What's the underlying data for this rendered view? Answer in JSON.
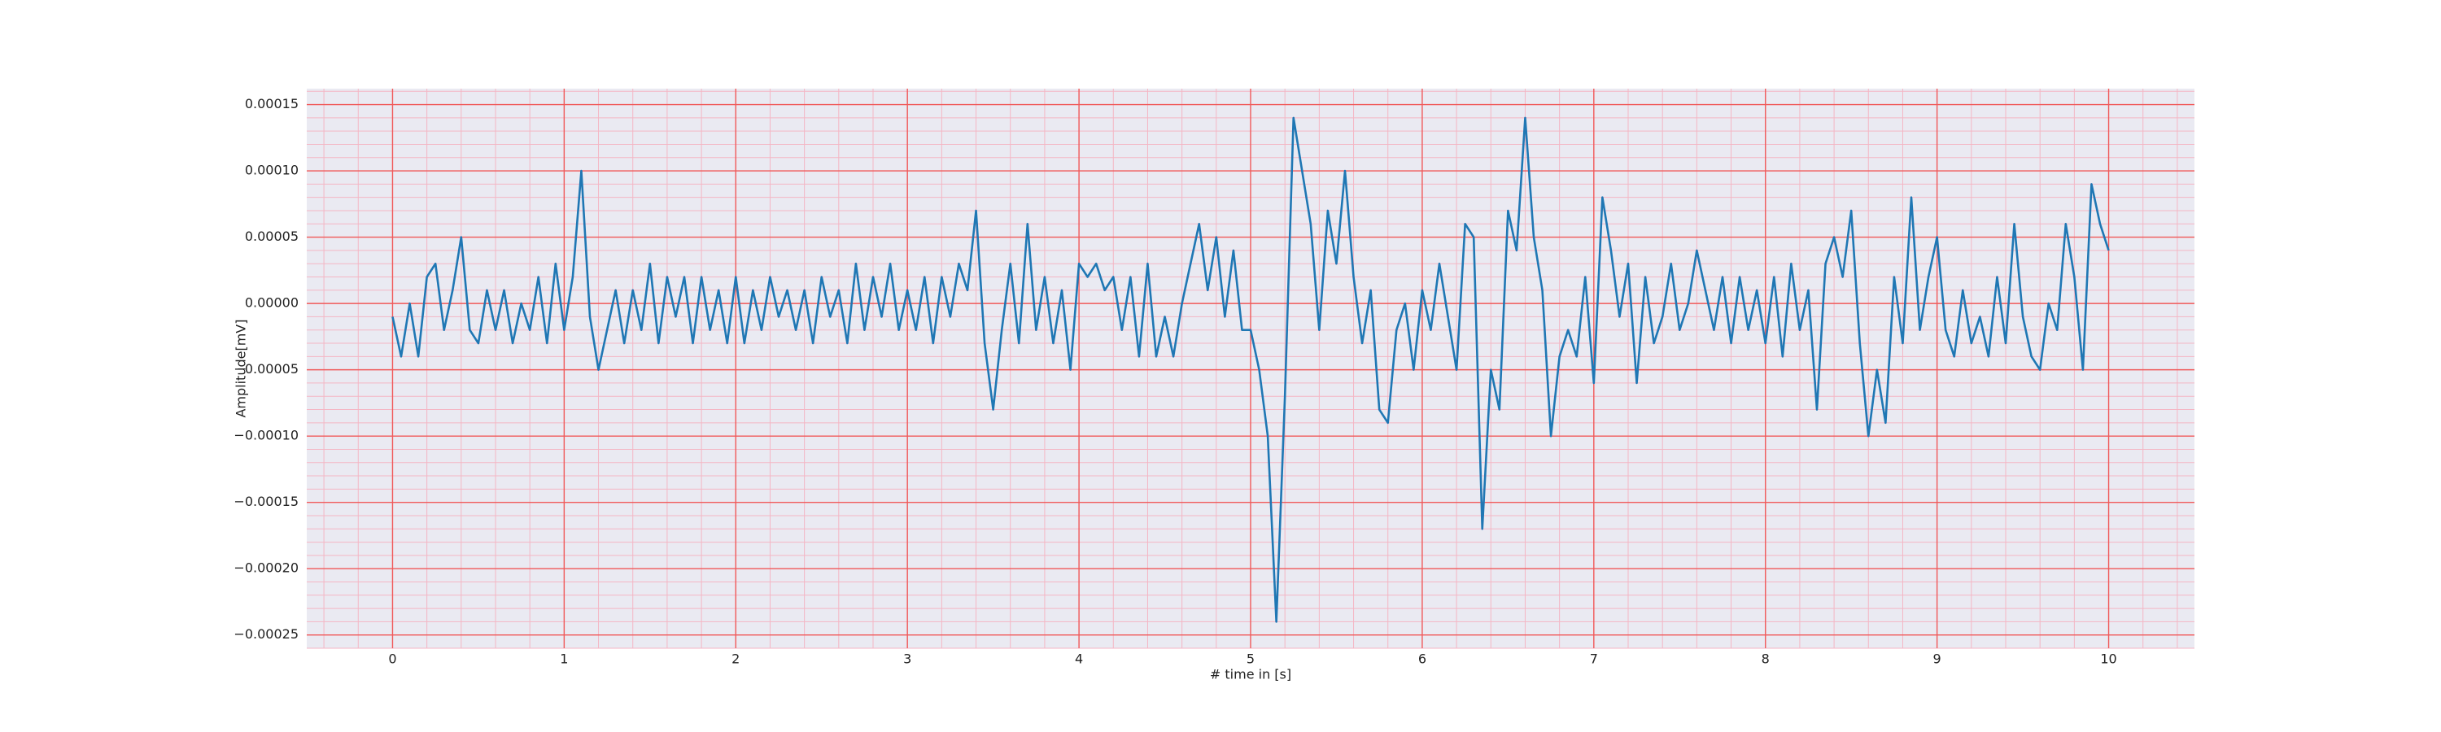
{
  "chart_data": {
    "type": "line",
    "xlabel": "# time in [s]",
    "ylabel": "Amplitude[mV]",
    "xlim": [
      -0.5,
      10.5
    ],
    "ylim": [
      -0.00026,
      0.000162
    ],
    "xticks": [
      0,
      1,
      2,
      3,
      4,
      5,
      6,
      7,
      8,
      9,
      10
    ],
    "yticks": [
      {
        "value": -0.00025,
        "label": "−0.00025"
      },
      {
        "value": -0.0002,
        "label": "−0.00020"
      },
      {
        "value": -0.00015,
        "label": "−0.00015"
      },
      {
        "value": -0.0001,
        "label": "−0.00010"
      },
      {
        "value": -5e-05,
        "label": "−0.00005"
      },
      {
        "value": 0,
        "label": "0.00000"
      },
      {
        "value": 5e-05,
        "label": "0.00005"
      },
      {
        "value": 0.0001,
        "label": "0.00010"
      },
      {
        "value": 0.00015,
        "label": "0.00015"
      }
    ],
    "grid": true,
    "minor_grid": true,
    "x": [
      0,
      0.05,
      0.1,
      0.15,
      0.2,
      0.25,
      0.3,
      0.35,
      0.4,
      0.45,
      0.5,
      0.55,
      0.6,
      0.65,
      0.7,
      0.75,
      0.8,
      0.85,
      0.9,
      0.95,
      1,
      1.05,
      1.1,
      1.15,
      1.2,
      1.25,
      1.3,
      1.35,
      1.4,
      1.45,
      1.5,
      1.55,
      1.6,
      1.65,
      1.7,
      1.75,
      1.8,
      1.85,
      1.9,
      1.95,
      2,
      2.05,
      2.1,
      2.15,
      2.2,
      2.25,
      2.3,
      2.35,
      2.4,
      2.45,
      2.5,
      2.55,
      2.6,
      2.65,
      2.7,
      2.75,
      2.8,
      2.85,
      2.9,
      2.95,
      3,
      3.05,
      3.1,
      3.15,
      3.2,
      3.25,
      3.3,
      3.35,
      3.4,
      3.45,
      3.5,
      3.55,
      3.6,
      3.65,
      3.7,
      3.75,
      3.8,
      3.85,
      3.9,
      3.95,
      4,
      4.05,
      4.1,
      4.15,
      4.2,
      4.25,
      4.3,
      4.35,
      4.4,
      4.45,
      4.5,
      4.55,
      4.6,
      4.65,
      4.7,
      4.75,
      4.8,
      4.85,
      4.9,
      4.95,
      5,
      5.05,
      5.1,
      5.15,
      5.2,
      5.25,
      5.3,
      5.35,
      5.4,
      5.45,
      5.5,
      5.55,
      5.6,
      5.65,
      5.7,
      5.75,
      5.8,
      5.85,
      5.9,
      5.95,
      6,
      6.05,
      6.1,
      6.15,
      6.2,
      6.25,
      6.3,
      6.35,
      6.4,
      6.45,
      6.5,
      6.55,
      6.6,
      6.65,
      6.7,
      6.75,
      6.8,
      6.85,
      6.9,
      6.95,
      7,
      7.05,
      7.1,
      7.15,
      7.2,
      7.25,
      7.3,
      7.35,
      7.4,
      7.45,
      7.5,
      7.55,
      7.6,
      7.65,
      7.7,
      7.75,
      7.8,
      7.85,
      7.9,
      7.95,
      8,
      8.05,
      8.1,
      8.15,
      8.2,
      8.25,
      8.3,
      8.35,
      8.4,
      8.45,
      8.5,
      8.55,
      8.6,
      8.65,
      8.7,
      8.75,
      8.8,
      8.85,
      8.9,
      8.95,
      9,
      9.05,
      9.1,
      9.15,
      9.2,
      9.25,
      9.3,
      9.35,
      9.4,
      9.45,
      9.5,
      9.55,
      9.6,
      9.65,
      9.7,
      9.75,
      9.8,
      9.85,
      9.9,
      9.95,
      10
    ],
    "series": [
      {
        "color": "#1f77b4",
        "values": [
          -1e-05,
          -4e-05,
          0,
          -4e-05,
          2e-05,
          3e-05,
          -2e-05,
          1e-05,
          5e-05,
          -2e-05,
          -3e-05,
          1e-05,
          -2e-05,
          1e-05,
          -3e-05,
          0,
          -2e-05,
          2e-05,
          -3e-05,
          3e-05,
          -2e-05,
          2e-05,
          0.0001,
          -1e-05,
          -5e-05,
          -2e-05,
          1e-05,
          -3e-05,
          1e-05,
          -2e-05,
          3e-05,
          -3e-05,
          2e-05,
          -1e-05,
          2e-05,
          -3e-05,
          2e-05,
          -2e-05,
          1e-05,
          -3e-05,
          2e-05,
          -3e-05,
          1e-05,
          -2e-05,
          2e-05,
          -1e-05,
          1e-05,
          -2e-05,
          1e-05,
          -3e-05,
          2e-05,
          -1e-05,
          1e-05,
          -3e-05,
          3e-05,
          -2e-05,
          2e-05,
          -1e-05,
          3e-05,
          -2e-05,
          1e-05,
          -2e-05,
          2e-05,
          -3e-05,
          2e-05,
          -1e-05,
          3e-05,
          1e-05,
          7e-05,
          -3e-05,
          -8e-05,
          -2e-05,
          3e-05,
          -3e-05,
          6e-05,
          -2e-05,
          2e-05,
          -3e-05,
          1e-05,
          -5e-05,
          3e-05,
          2e-05,
          3e-05,
          1e-05,
          2e-05,
          -2e-05,
          2e-05,
          -4e-05,
          3e-05,
          -4e-05,
          -1e-05,
          -4e-05,
          0,
          3e-05,
          6e-05,
          1e-05,
          5e-05,
          -1e-05,
          4e-05,
          -2e-05,
          -2e-05,
          -5e-05,
          -0.0001,
          -0.00024,
          -7e-05,
          0.00014,
          0.0001,
          6e-05,
          -2e-05,
          7e-05,
          3e-05,
          0.0001,
          2e-05,
          -3e-05,
          1e-05,
          -8e-05,
          -9e-05,
          -2e-05,
          0,
          -5e-05,
          1e-05,
          -2e-05,
          3e-05,
          -1e-05,
          -5e-05,
          6e-05,
          5e-05,
          -0.00017,
          -5e-05,
          -8e-05,
          7e-05,
          4e-05,
          0.00014,
          5e-05,
          1e-05,
          -0.0001,
          -4e-05,
          -2e-05,
          -4e-05,
          2e-05,
          -6e-05,
          8e-05,
          4e-05,
          -1e-05,
          3e-05,
          -6e-05,
          2e-05,
          -3e-05,
          -1e-05,
          3e-05,
          -2e-05,
          0,
          4e-05,
          1e-05,
          -2e-05,
          2e-05,
          -3e-05,
          2e-05,
          -2e-05,
          1e-05,
          -3e-05,
          2e-05,
          -4e-05,
          3e-05,
          -2e-05,
          1e-05,
          -8e-05,
          3e-05,
          5e-05,
          2e-05,
          7e-05,
          -3e-05,
          -0.0001,
          -5e-05,
          -9e-05,
          2e-05,
          -3e-05,
          8e-05,
          -2e-05,
          2e-05,
          5e-05,
          -2e-05,
          -4e-05,
          1e-05,
          -3e-05,
          -1e-05,
          -4e-05,
          2e-05,
          -3e-05,
          6e-05,
          -1e-05,
          -4e-05,
          -5e-05,
          0,
          -2e-05,
          6e-05,
          2e-05,
          -5e-05,
          9e-05,
          6e-05,
          4e-05
        ]
      }
    ]
  }
}
